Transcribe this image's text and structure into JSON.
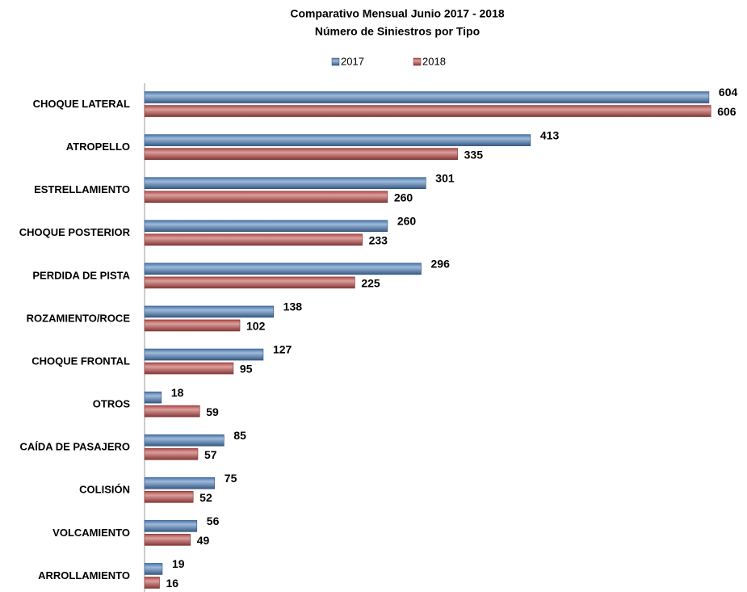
{
  "chart_data": {
    "type": "hbar",
    "title": "Comparativo Mensual  Junio 2017 - 2018",
    "subtitle": "Número de Siniestros por Tipo",
    "categories": [
      "CHOQUE LATERAL",
      "ATROPELLO",
      "ESTRELLAMIENTO",
      "CHOQUE POSTERIOR",
      "PERDIDA DE PISTA",
      "ROZAMIENTO/ROCE",
      "CHOQUE FRONTAL",
      "OTROS",
      "CAÍDA DE PASAJERO",
      "COLISIÓN",
      "VOLCAMIENTO",
      "ARROLLAMIENTO"
    ],
    "series": [
      {
        "name": "2017",
        "color": "#4f81bd",
        "values": [
          604,
          413,
          301,
          260,
          296,
          138,
          127,
          18,
          85,
          75,
          56,
          19
        ]
      },
      {
        "name": "2018",
        "color": "#c0504d",
        "values": [
          606,
          335,
          260,
          233,
          225,
          102,
          95,
          59,
          57,
          52,
          49,
          16
        ]
      }
    ],
    "xlim": [
      0,
      630
    ],
    "legend": "top"
  }
}
